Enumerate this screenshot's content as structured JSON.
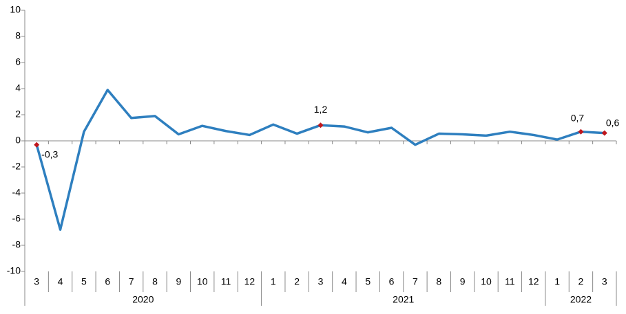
{
  "chart_data": {
    "type": "line",
    "groups": [
      {
        "name": "2020",
        "categories": [
          "3",
          "4",
          "5",
          "6",
          "7",
          "8",
          "9",
          "10",
          "11",
          "12"
        ]
      },
      {
        "name": "2021",
        "categories": [
          "1",
          "2",
          "3",
          "4",
          "5",
          "6",
          "7",
          "8",
          "9",
          "10",
          "11",
          "12"
        ]
      },
      {
        "name": "2022",
        "categories": [
          "1",
          "2",
          "3"
        ]
      }
    ],
    "values": [
      -0.3,
      -6.8,
      0.7,
      3.9,
      1.75,
      1.9,
      0.5,
      1.15,
      0.75,
      0.45,
      1.25,
      0.55,
      1.2,
      1.1,
      0.65,
      1.0,
      -0.3,
      0.55,
      0.5,
      0.4,
      0.7,
      0.45,
      0.1,
      0.7,
      0.6
    ],
    "value_labels": [
      "-0,3",
      null,
      null,
      null,
      null,
      null,
      null,
      null,
      null,
      null,
      null,
      null,
      "1,2",
      null,
      null,
      null,
      null,
      null,
      null,
      null,
      null,
      null,
      null,
      "0,7",
      "0,6"
    ],
    "color": "#2e7fbf",
    "marker_color": "#c0171d",
    "ylim": [
      -10,
      10
    ],
    "yticks": [
      -10,
      -8,
      -6,
      -4,
      -2,
      0,
      2,
      4,
      6,
      8,
      10
    ]
  }
}
